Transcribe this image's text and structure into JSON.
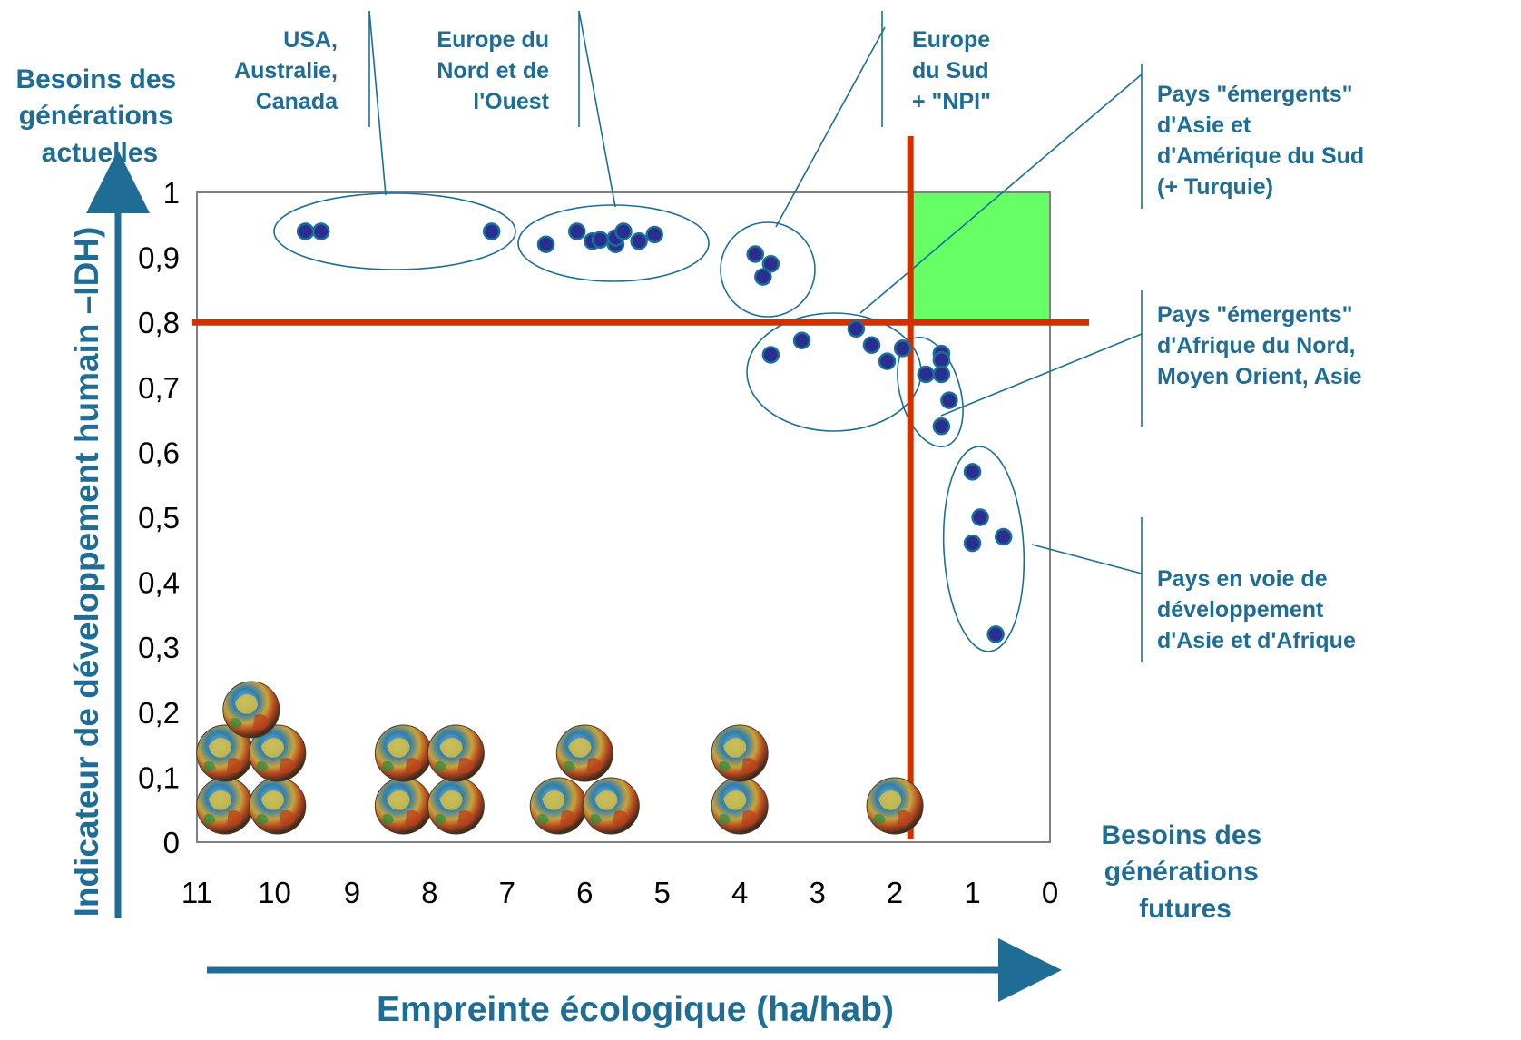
{
  "chart_data": {
    "type": "scatter",
    "x_axis_reversed": true,
    "xlim": [
      0,
      11
    ],
    "ylim": [
      0,
      1
    ],
    "xlabel": "Empreinte écologique (ha/hab)",
    "ylabel": "Indicateur de développement humain –IDH)",
    "x_ticks": [
      "11",
      "10",
      "9",
      "8",
      "7",
      "6",
      "5",
      "4",
      "3",
      "2",
      "1",
      "0"
    ],
    "y_ticks": [
      "0",
      "0,1",
      "0,2",
      "0,3",
      "0,4",
      "0,5",
      "0,6",
      "0,7",
      "0,8",
      "0,9",
      "1"
    ],
    "y_top_label": [
      "Besoins des",
      "générations",
      "actuelles"
    ],
    "x_right_label": [
      "Besoins des",
      "générations",
      "futures"
    ],
    "threshold_lines": [
      {
        "axis": "x",
        "value": 1.8,
        "color": "#cc3300"
      },
      {
        "axis": "y",
        "value": 0.8,
        "color": "#cc3300"
      }
    ],
    "sustainable_zone": {
      "x": [
        0,
        1.8
      ],
      "y": [
        0.8,
        1.0
      ],
      "color": "#66ff66"
    },
    "groups": [
      {
        "name_lines": [
          "USA,",
          "Australie,",
          "Canada"
        ],
        "points": [
          [
            9.6,
            0.94
          ],
          [
            9.4,
            0.94
          ],
          [
            7.2,
            0.94
          ]
        ]
      },
      {
        "name_lines": [
          "Europe du",
          "Nord et de",
          "l'Ouest"
        ],
        "points": [
          [
            6.5,
            0.92
          ],
          [
            6.1,
            0.94
          ],
          [
            5.9,
            0.925
          ],
          [
            5.8,
            0.927
          ],
          [
            5.6,
            0.92
          ],
          [
            5.6,
            0.93
          ],
          [
            5.5,
            0.94
          ],
          [
            5.3,
            0.925
          ],
          [
            5.1,
            0.935
          ]
        ]
      },
      {
        "name_lines": [
          "Europe",
          "du Sud",
          "+ \"NPI\""
        ],
        "points": [
          [
            3.8,
            0.905
          ],
          [
            3.6,
            0.89
          ],
          [
            3.7,
            0.87
          ]
        ]
      },
      {
        "name_lines": [
          " Pays \"émergents\"",
          "d'Asie et",
          "d'Amérique du Sud",
          "(+ Turquie)"
        ],
        "points": [
          [
            3.6,
            0.75
          ],
          [
            3.2,
            0.772
          ],
          [
            2.5,
            0.79
          ],
          [
            2.3,
            0.765
          ],
          [
            2.1,
            0.74
          ],
          [
            1.9,
            0.76
          ]
        ]
      },
      {
        "name_lines": [
          "Pays \"émergents\"",
          "d'Afrique du Nord,",
          "Moyen Orient, Asie"
        ],
        "points": [
          [
            1.4,
            0.752
          ],
          [
            1.4,
            0.742
          ],
          [
            1.6,
            0.72
          ],
          [
            1.4,
            0.72
          ],
          [
            1.3,
            0.68
          ],
          [
            1.4,
            0.64
          ]
        ]
      },
      {
        "name_lines": [
          "Pays en voie de",
          "développement",
          "d'Asie et d'Afrique"
        ],
        "points": [
          [
            1.0,
            0.57
          ],
          [
            0.9,
            0.5
          ],
          [
            0.6,
            0.47
          ],
          [
            1.0,
            0.46
          ],
          [
            0.7,
            0.32
          ]
        ]
      }
    ],
    "planet_stacks": [
      {
        "x_center": 10.3,
        "count": 5
      },
      {
        "x_center": 8.0,
        "count": 4
      },
      {
        "x_center": 6.0,
        "count": 3
      },
      {
        "x_center": 4.0,
        "count": 2
      },
      {
        "x_center": 2.0,
        "count": 1
      }
    ],
    "colors": {
      "text": "#1f6c94",
      "point_fill": "#2a2f8f",
      "point_edge": "#1a6f9a",
      "ellipse": "#1a6f9a",
      "threshold": "#cc3300",
      "frame": "#808080"
    }
  }
}
